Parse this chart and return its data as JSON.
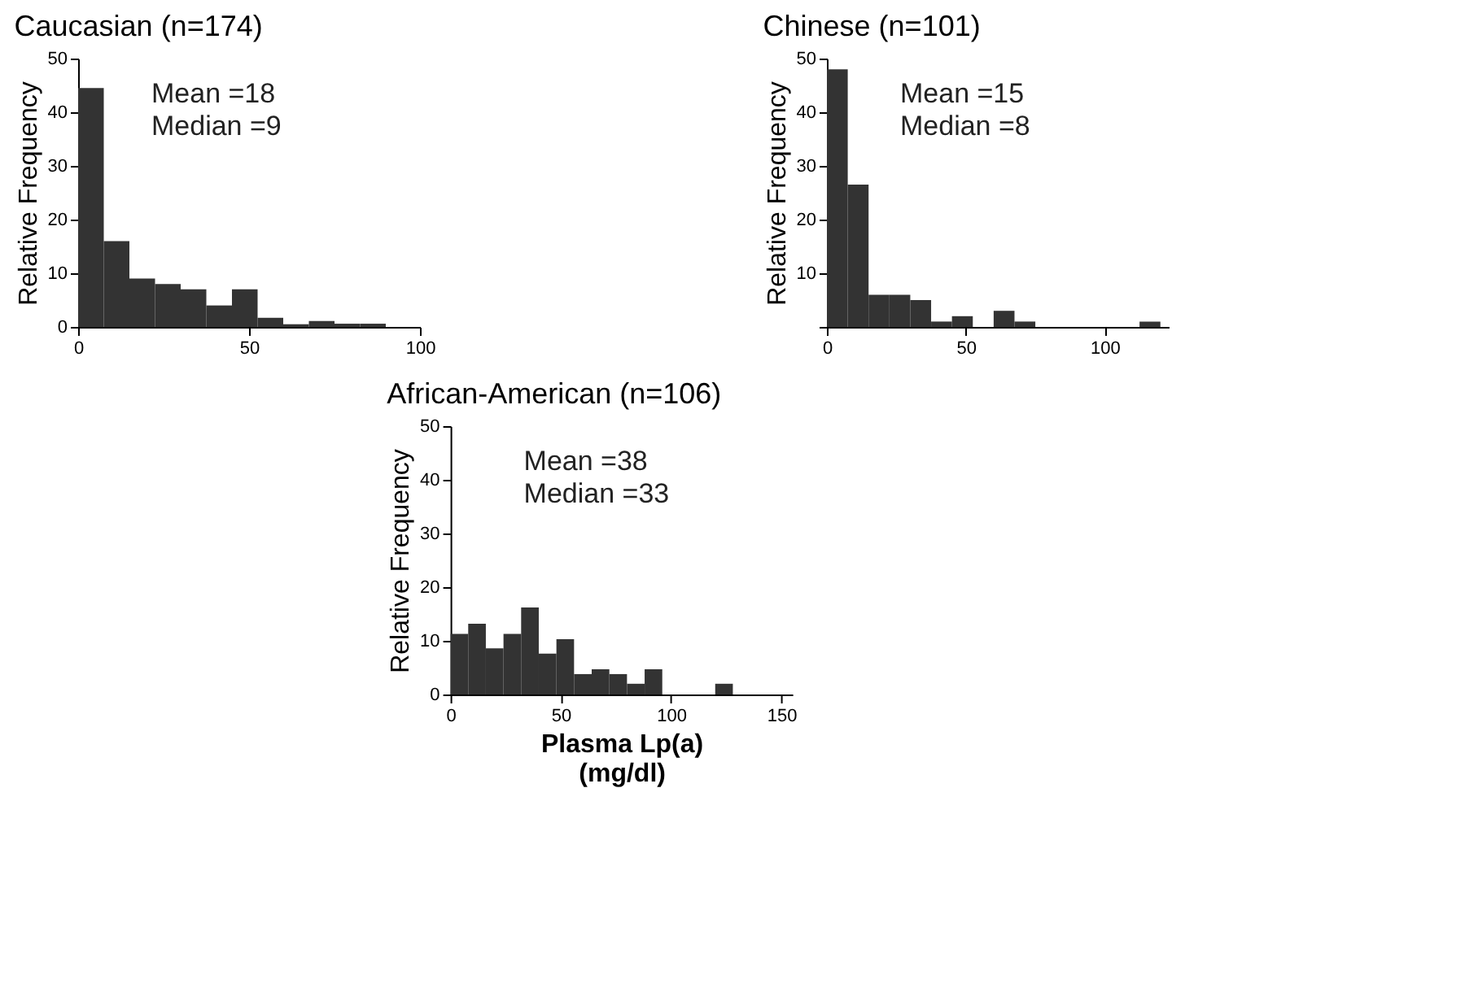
{
  "chart_data": [
    {
      "type": "histogram",
      "title": "Caucasian (n=174)",
      "ylabel": "Relative Frequency",
      "annotations": [
        "Mean =18",
        "Median =9"
      ],
      "bins": [
        0,
        7.5,
        15,
        22.5,
        30,
        37.5,
        45,
        52.5,
        60,
        67.5,
        75,
        82.5,
        90
      ],
      "values": [
        44.5,
        16,
        9,
        8,
        7,
        4,
        7,
        1.7,
        0.5,
        1.1,
        0.6,
        0.6
      ],
      "color": "#333333",
      "xlim": [
        0,
        100
      ],
      "xticks": [
        0,
        50,
        100
      ],
      "ylim": [
        0,
        50
      ],
      "yticks": [
        0,
        10,
        20,
        30,
        40,
        50
      ],
      "grid": false
    },
    {
      "type": "histogram",
      "title": "Chinese (n=101)",
      "ylabel": "Relative Frequency",
      "annotations": [
        "Mean =15",
        "Median =8"
      ],
      "bins": [
        0,
        7.5,
        15,
        22.5,
        30,
        37.5,
        45,
        52.5,
        60,
        67.5,
        75,
        82.5,
        90,
        97.5,
        105,
        112.5,
        120
      ],
      "values": [
        48,
        26.5,
        6,
        6,
        5,
        1,
        2,
        0,
        3,
        1,
        0,
        0,
        0,
        0,
        0,
        1
      ],
      "color": "#333333",
      "xlim": [
        0,
        123
      ],
      "xticks": [
        0,
        50,
        100
      ],
      "ylim": [
        0,
        50
      ],
      "yticks": [
        {
          "value": 0,
          "label": null
        },
        10,
        20,
        30,
        40,
        50
      ],
      "grid": false
    },
    {
      "type": "histogram",
      "title": "African-American (n=106)",
      "ylabel": "Relative Frequency",
      "xlabel": "Plasma Lp(a)\n(mg/dl)",
      "annotations": [
        "Mean =38",
        "Median =33"
      ],
      "bins": [
        0,
        8,
        16,
        24,
        32,
        40,
        48,
        56,
        64,
        72,
        80,
        88,
        96,
        104,
        112,
        120,
        128
      ],
      "values": [
        11.3,
        13.2,
        8.6,
        11.3,
        16.2,
        7.6,
        10.3,
        3.8,
        4.7,
        3.8,
        2,
        4.7,
        0,
        0,
        0,
        2
      ],
      "color": "#333333",
      "xlim": [
        0,
        155
      ],
      "xticks": [
        0,
        50,
        100,
        150
      ],
      "ylim": [
        0,
        50
      ],
      "yticks": [
        0,
        10,
        20,
        30,
        40,
        50
      ],
      "grid": false
    }
  ]
}
